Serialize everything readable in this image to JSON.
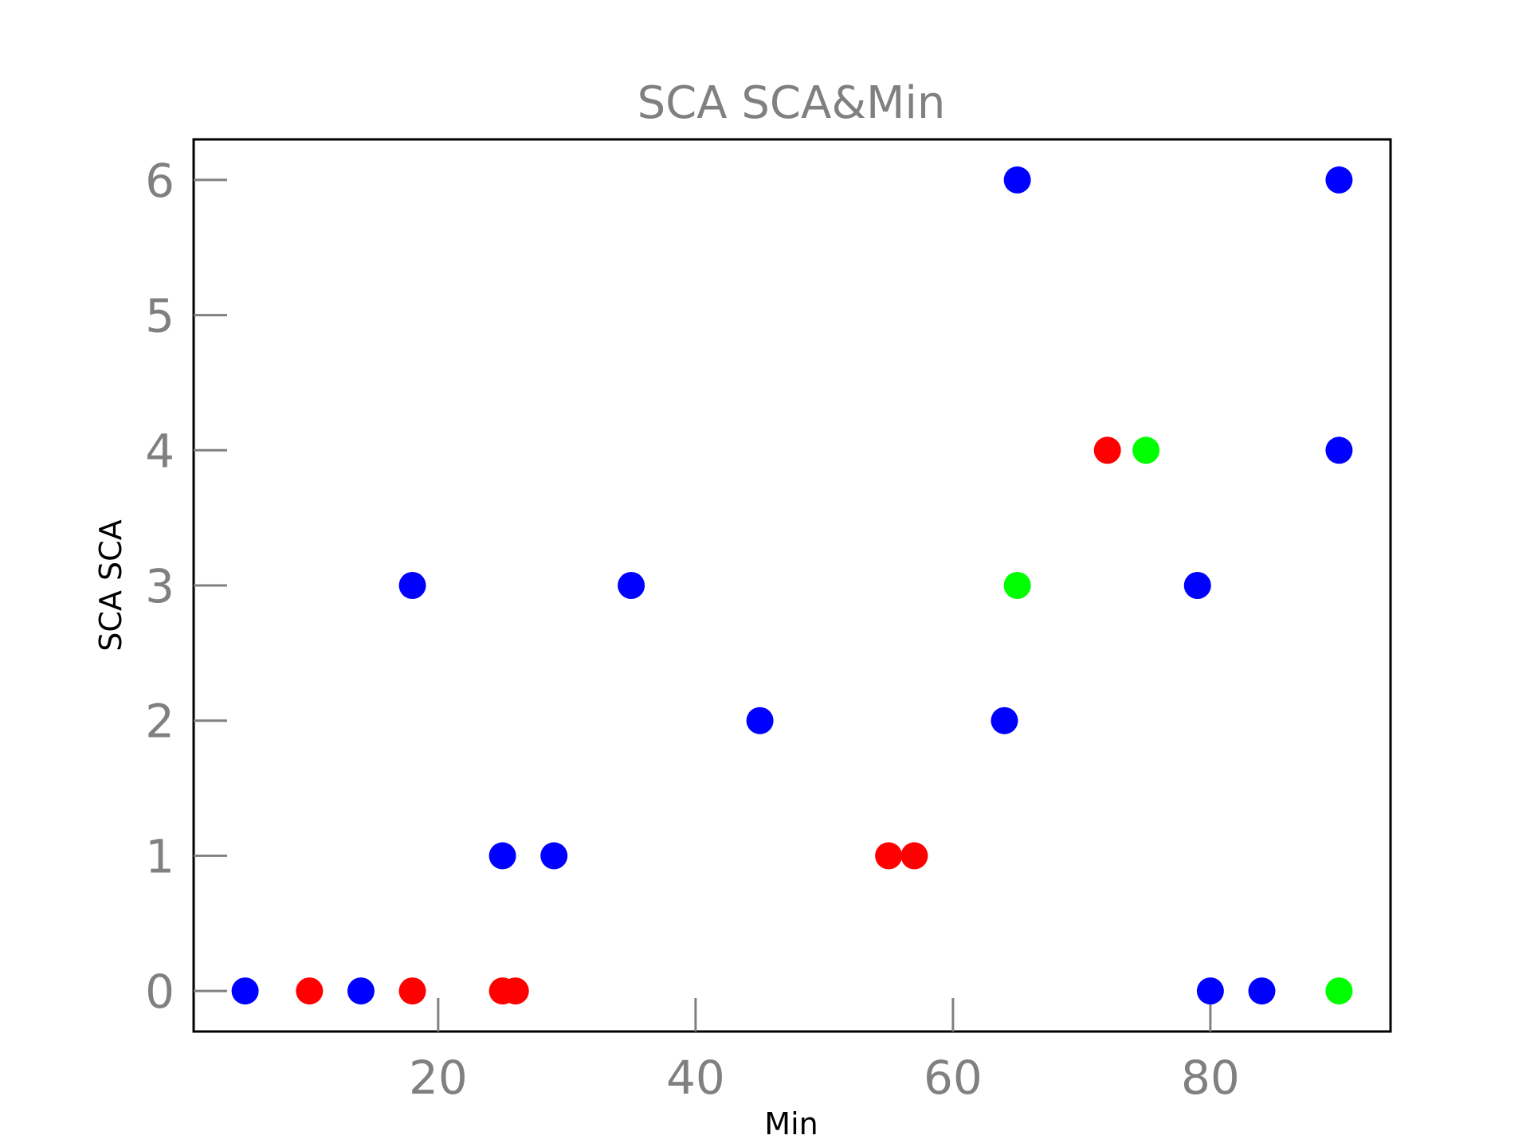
{
  "chart_data": {
    "type": "scatter",
    "title": "SCA SCA&Min",
    "xlabel": "Min",
    "ylabel": "SCA SCA",
    "xlim": [
      1,
      94
    ],
    "ylim": [
      -0.3,
      6.3
    ],
    "xticks": [
      20,
      40,
      60,
      80
    ],
    "yticks": [
      0,
      1,
      2,
      3,
      4,
      5,
      6
    ],
    "grid": false,
    "legend": "none",
    "series": [
      {
        "color": "#0000ff",
        "points": [
          {
            "x": 5,
            "y": 0
          },
          {
            "x": 14,
            "y": 0
          },
          {
            "x": 18,
            "y": 3
          },
          {
            "x": 25,
            "y": 1
          },
          {
            "x": 29,
            "y": 1
          },
          {
            "x": 35,
            "y": 3
          },
          {
            "x": 45,
            "y": 2
          },
          {
            "x": 64,
            "y": 2
          },
          {
            "x": 65,
            "y": 6
          },
          {
            "x": 79,
            "y": 3
          },
          {
            "x": 80,
            "y": 0
          },
          {
            "x": 84,
            "y": 0
          },
          {
            "x": 90,
            "y": 6
          },
          {
            "x": 90,
            "y": 4
          }
        ]
      },
      {
        "color": "#ff0000",
        "points": [
          {
            "x": 10,
            "y": 0
          },
          {
            "x": 18,
            "y": 0
          },
          {
            "x": 25,
            "y": 0
          },
          {
            "x": 26,
            "y": 0
          },
          {
            "x": 55,
            "y": 1
          },
          {
            "x": 57,
            "y": 1
          },
          {
            "x": 72,
            "y": 4
          }
        ]
      },
      {
        "color": "#00ff00",
        "points": [
          {
            "x": 65,
            "y": 3
          },
          {
            "x": 75,
            "y": 4
          },
          {
            "x": 90,
            "y": 0
          }
        ]
      }
    ]
  }
}
